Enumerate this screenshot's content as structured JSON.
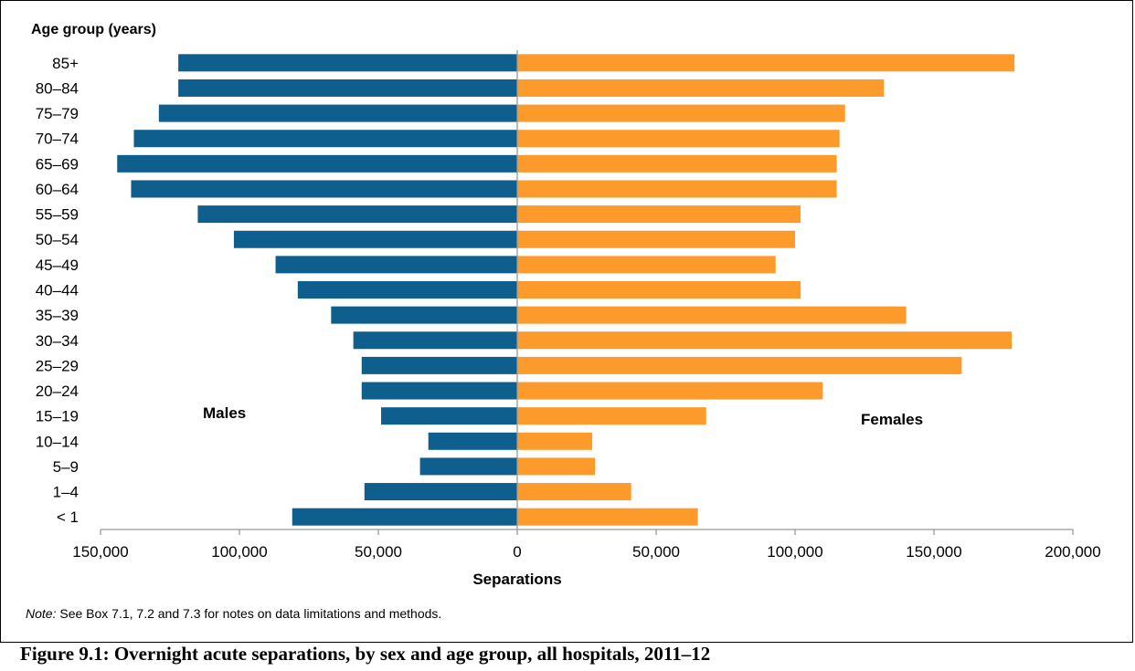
{
  "chart_data": {
    "type": "bar",
    "orientation": "horizontal",
    "layout": "diverging",
    "categories": [
      "< 1",
      "1–4",
      "5–9",
      "10–14",
      "15–19",
      "20–24",
      "25–29",
      "30–34",
      "35–39",
      "40–44",
      "45–49",
      "50–54",
      "55–59",
      "60–64",
      "65–69",
      "70–74",
      "75–79",
      "80–84",
      "85+"
    ],
    "series": [
      {
        "name": "Males",
        "side": "left",
        "color": "#0f5f8e",
        "values": [
          81000,
          55000,
          35000,
          32000,
          49000,
          56000,
          56000,
          59000,
          67000,
          79000,
          87000,
          102000,
          115000,
          139000,
          144000,
          138000,
          129000,
          122000,
          122000
        ]
      },
      {
        "name": "Females",
        "side": "right",
        "color": "#fd9a2c",
        "values": [
          65000,
          41000,
          28000,
          27000,
          68000,
          110000,
          160000,
          178000,
          140000,
          102000,
          93000,
          100000,
          102000,
          115000,
          115000,
          116000,
          118000,
          132000,
          179000
        ]
      }
    ],
    "xlim": [
      -150000,
      200000
    ],
    "xticks": [
      -150000,
      -100000,
      -50000,
      0,
      50000,
      100000,
      150000,
      200000
    ],
    "xtick_labels": [
      "150,000",
      "100,000",
      "50,000",
      "0",
      "50,000",
      "100,000",
      "150,000",
      "200,000"
    ],
    "xlabel": "Separations",
    "ylabel": "Age group (years)",
    "grid": false
  },
  "note": {
    "prefix": "Note:",
    "text": " See Box 7.1, 7.2 and 7.3 for notes on data limitations and methods."
  },
  "caption": "Figure 9.1: Overnight acute separations, by sex and age group, all hospitals, 2011–12"
}
